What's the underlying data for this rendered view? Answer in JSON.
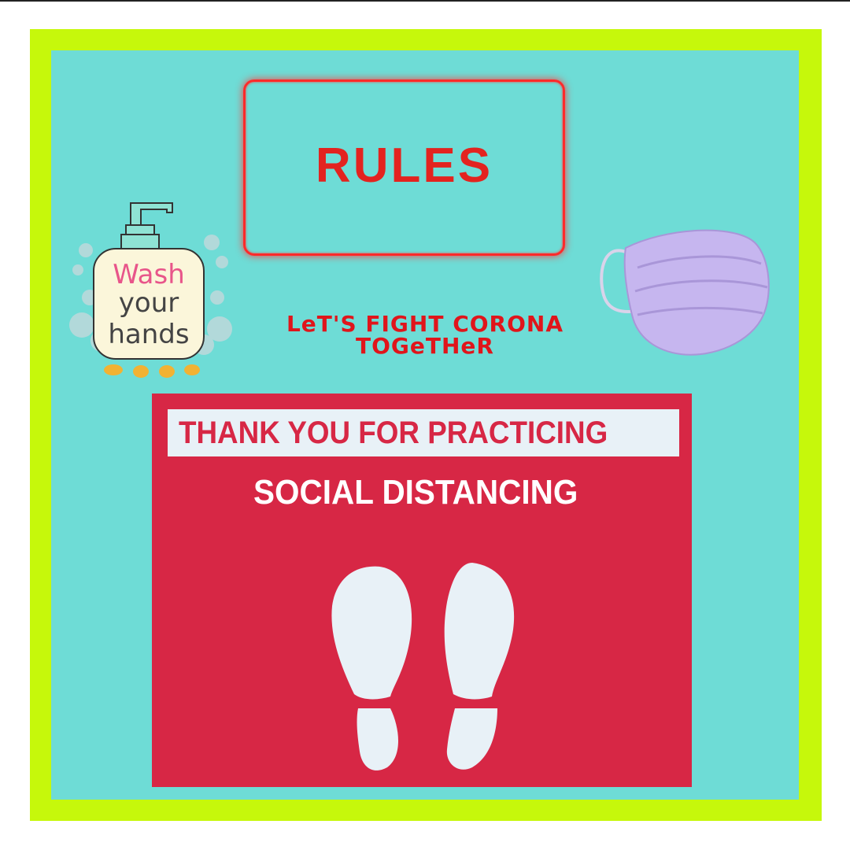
{
  "rules": {
    "title": "RULES"
  },
  "tagline": {
    "line1": "LeT'S FIGHT CORONA",
    "line2": "TOGeTHeR"
  },
  "sign": {
    "line1": "THANK YOU FOR PRACTICING",
    "line2": "SOCIAL DISTANCING"
  },
  "wash_sticker": {
    "word1": "Wash",
    "word2": "your",
    "word3": "hands",
    "icon": "soap-dispenser-icon"
  },
  "mask": {
    "icon": "face-mask-icon"
  },
  "colors": {
    "frame": "#c6f80b",
    "panel": "#6edcd6",
    "sign": "#d72745",
    "title_red": "#e3231f",
    "mask": "#c6b6ef"
  }
}
